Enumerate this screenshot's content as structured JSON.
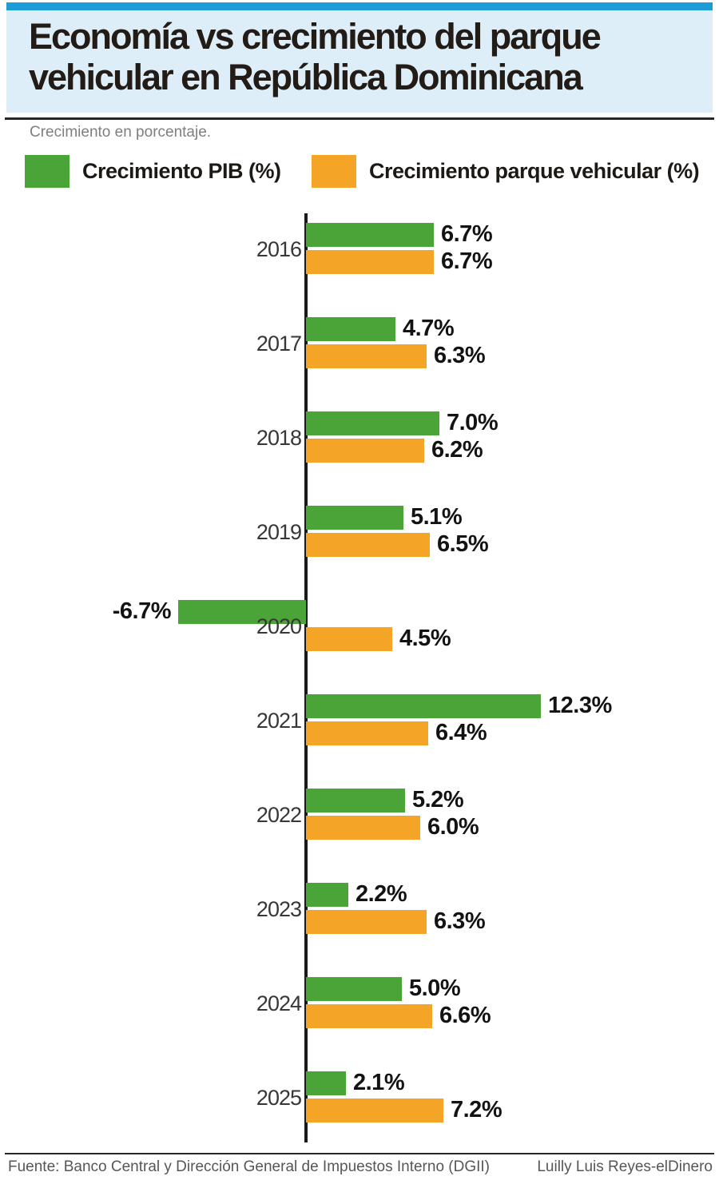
{
  "header": {
    "title_lines": [
      "Economía vs crecimiento del parque",
      "vehicular en República Dominicana"
    ],
    "top_bar_color": "#1e9cd7",
    "panel_bg_color": "#ddeef8"
  },
  "subtitle": "Crecimiento en porcentaje.",
  "legend": [
    {
      "label": "Crecimiento PIB (%)",
      "color": "#4aa438"
    },
    {
      "label": "Crecimiento parque vehicular (%)",
      "color": "#f4a427"
    }
  ],
  "chart_data": {
    "type": "bar",
    "orientation": "horizontal",
    "categories": [
      "2016",
      "2017",
      "2018",
      "2019",
      "2020",
      "2021",
      "2022",
      "2023",
      "2024",
      "2025"
    ],
    "series": [
      {
        "name": "Crecimiento PIB (%)",
        "color": "#4aa438",
        "values": [
          6.7,
          4.7,
          7.0,
          5.1,
          -6.7,
          12.3,
          5.2,
          2.2,
          5.0,
          2.1
        ],
        "labels": [
          "6.7%",
          "4.7%",
          "7.0%",
          "5.1%",
          "-6.7%",
          "12.3%",
          "5.2%",
          "2.2%",
          "5.0%",
          "2.1%"
        ]
      },
      {
        "name": "Crecimiento parque vehicular (%)",
        "color": "#f4a427",
        "values": [
          6.7,
          6.3,
          6.2,
          6.5,
          4.5,
          6.4,
          6.0,
          6.3,
          6.6,
          7.2
        ],
        "labels": [
          "6.7%",
          "6.3%",
          "6.2%",
          "6.5%",
          "4.5%",
          "6.4%",
          "6.0%",
          "6.3%",
          "6.6%",
          "7.2%"
        ]
      }
    ],
    "value_suffix": "%",
    "xlim": [
      -7,
      13
    ],
    "grid": false,
    "legend_position": "top",
    "value_labels_shown": true
  },
  "footer": {
    "source": "Fuente: Banco Central y Dirección General de Impuestos Interno (DGII)",
    "credit": "Luilly Luis Reyes-elDinero"
  }
}
